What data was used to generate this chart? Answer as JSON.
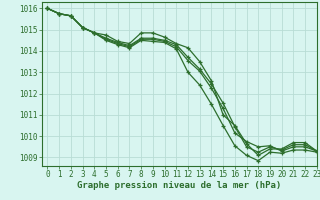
{
  "title": "Graphe pression niveau de la mer (hPa)",
  "bg_color": "#d8f5f0",
  "grid_color": "#b8ddd5",
  "line_color": "#2d6e2d",
  "xlim": [
    -0.5,
    23
  ],
  "ylim": [
    1008.6,
    1016.3
  ],
  "yticks": [
    1009,
    1010,
    1011,
    1012,
    1013,
    1014,
    1015,
    1016
  ],
  "xticks": [
    0,
    1,
    2,
    3,
    4,
    5,
    6,
    7,
    8,
    9,
    10,
    11,
    12,
    13,
    14,
    15,
    16,
    17,
    18,
    19,
    20,
    21,
    22,
    23
  ],
  "series": [
    [
      1016.0,
      1015.75,
      1015.65,
      1015.1,
      1014.85,
      1014.75,
      1014.45,
      1014.35,
      1014.85,
      1014.85,
      1014.65,
      1014.35,
      1014.15,
      1013.5,
      1012.6,
      1011.0,
      1010.5,
      1009.65,
      1009.1,
      1009.4,
      1009.4,
      1009.7,
      1009.7,
      1009.3
    ],
    [
      1016.0,
      1015.75,
      1015.65,
      1015.1,
      1014.85,
      1014.55,
      1014.35,
      1014.2,
      1014.55,
      1014.55,
      1014.45,
      1014.2,
      1013.55,
      1013.05,
      1012.25,
      1011.3,
      1010.15,
      1009.75,
      1009.5,
      1009.55,
      1009.3,
      1009.5,
      1009.5,
      1009.3
    ],
    [
      1016.0,
      1015.75,
      1015.65,
      1015.1,
      1014.85,
      1014.6,
      1014.4,
      1014.25,
      1014.6,
      1014.6,
      1014.5,
      1014.3,
      1013.7,
      1013.15,
      1012.45,
      1011.55,
      1010.45,
      1009.5,
      1009.25,
      1009.5,
      1009.35,
      1009.6,
      1009.6,
      1009.3
    ],
    [
      1016.0,
      1015.75,
      1015.65,
      1015.1,
      1014.85,
      1014.5,
      1014.3,
      1014.15,
      1014.5,
      1014.45,
      1014.4,
      1014.1,
      1013.0,
      1012.4,
      1011.5,
      1010.5,
      1009.55,
      1009.1,
      1008.85,
      1009.25,
      1009.2,
      1009.35,
      1009.35,
      1009.25
    ]
  ]
}
